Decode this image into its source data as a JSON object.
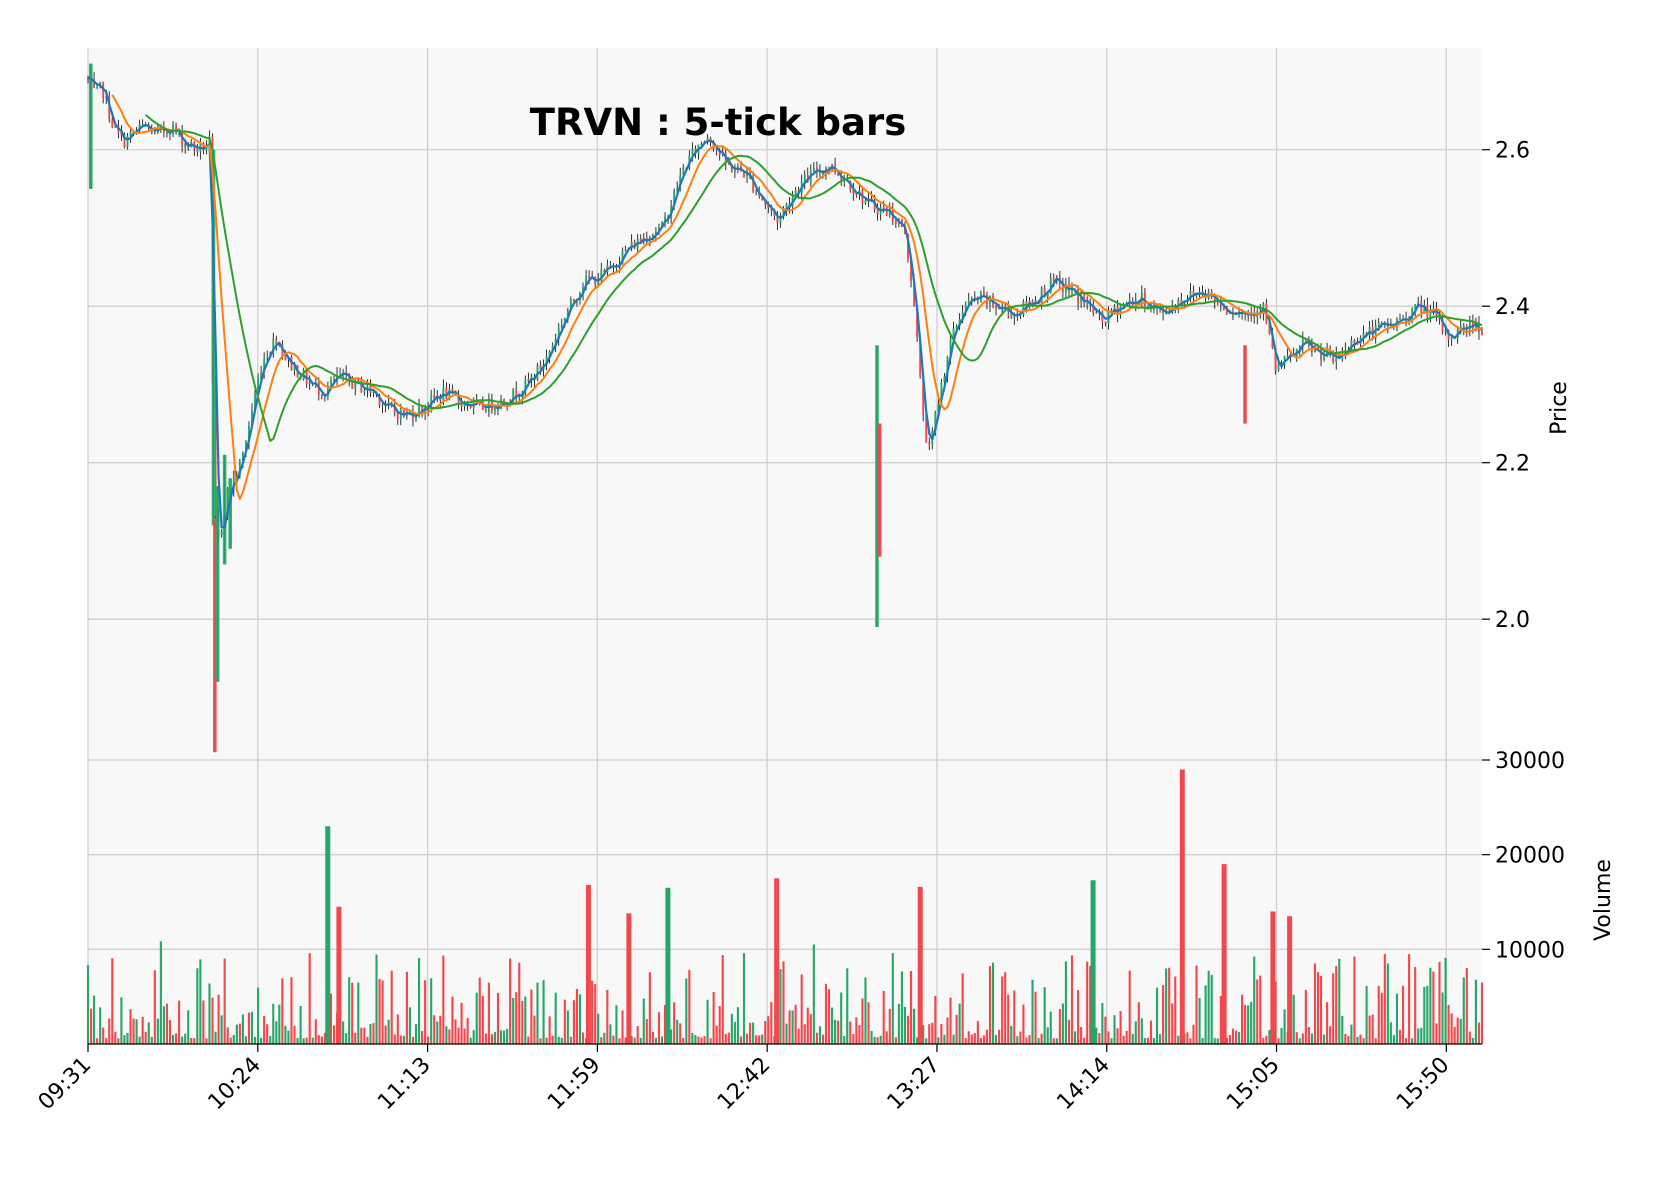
{
  "chart_data": {
    "type": "candlestick",
    "title": "TRVN : 5-tick bars",
    "price_axis": {
      "label": "Price",
      "ylim": [
        1.82,
        2.73
      ],
      "ticks": [
        2.0,
        2.2,
        2.4,
        2.6
      ],
      "tick_labels": [
        "2.0",
        "2.2",
        "2.4",
        "2.6"
      ],
      "side": "right"
    },
    "volume_axis": {
      "label": "Volume",
      "ylim": [
        0,
        30000
      ],
      "ticks": [
        10000,
        20000,
        30000
      ],
      "tick_labels": [
        "10000",
        "20000",
        "30000"
      ],
      "side": "right"
    },
    "time_axis": {
      "tick_labels": [
        "09:31",
        "10:24",
        "11:13",
        "11:59",
        "12:42",
        "13:27",
        "14:14",
        "15:05",
        "15:50"
      ],
      "tick_positions": [
        0,
        0.1218,
        0.2436,
        0.3654,
        0.4872,
        0.609,
        0.7308,
        0.8526,
        0.9744
      ]
    },
    "grid": true,
    "style": {
      "up_color": "#26a76a",
      "down_color": "#f0484c",
      "wick_color": "#000000",
      "panel_background": "#f8f8f8",
      "grid_color": "#d0d0d0",
      "ma_colors": [
        "#1f77b4",
        "#ff7f0e",
        "#2ca02c"
      ]
    },
    "price_anchors": [
      [
        0.0,
        2.69
      ],
      [
        0.005,
        2.67
      ],
      [
        0.01,
        2.68
      ],
      [
        0.018,
        2.63
      ],
      [
        0.025,
        2.61
      ],
      [
        0.032,
        2.62
      ],
      [
        0.04,
        2.63
      ],
      [
        0.05,
        2.62
      ],
      [
        0.06,
        2.63
      ],
      [
        0.068,
        2.61
      ],
      [
        0.08,
        2.6
      ],
      [
        0.088,
        2.61
      ],
      [
        0.09,
        2.14
      ],
      [
        0.094,
        2.1
      ],
      [
        0.1,
        2.16
      ],
      [
        0.11,
        2.2
      ],
      [
        0.118,
        2.27
      ],
      [
        0.125,
        2.33
      ],
      [
        0.135,
        2.36
      ],
      [
        0.143,
        2.33
      ],
      [
        0.16,
        2.3
      ],
      [
        0.17,
        2.29
      ],
      [
        0.18,
        2.31
      ],
      [
        0.192,
        2.3
      ],
      [
        0.205,
        2.29
      ],
      [
        0.215,
        2.27
      ],
      [
        0.228,
        2.26
      ],
      [
        0.24,
        2.27
      ],
      [
        0.255,
        2.29
      ],
      [
        0.265,
        2.28
      ],
      [
        0.28,
        2.27
      ],
      [
        0.3,
        2.28
      ],
      [
        0.315,
        2.3
      ],
      [
        0.328,
        2.33
      ],
      [
        0.34,
        2.38
      ],
      [
        0.355,
        2.43
      ],
      [
        0.37,
        2.44
      ],
      [
        0.385,
        2.47
      ],
      [
        0.4,
        2.49
      ],
      [
        0.412,
        2.5
      ],
      [
        0.42,
        2.54
      ],
      [
        0.428,
        2.58
      ],
      [
        0.436,
        2.6
      ],
      [
        0.445,
        2.62
      ],
      [
        0.458,
        2.58
      ],
      [
        0.472,
        2.57
      ],
      [
        0.486,
        2.53
      ],
      [
        0.495,
        2.51
      ],
      [
        0.508,
        2.55
      ],
      [
        0.52,
        2.57
      ],
      [
        0.532,
        2.58
      ],
      [
        0.545,
        2.56
      ],
      [
        0.56,
        2.53
      ],
      [
        0.575,
        2.52
      ],
      [
        0.585,
        2.5
      ],
      [
        0.592,
        2.42
      ],
      [
        0.598,
        2.28
      ],
      [
        0.603,
        2.21
      ],
      [
        0.61,
        2.28
      ],
      [
        0.618,
        2.35
      ],
      [
        0.628,
        2.4
      ],
      [
        0.64,
        2.41
      ],
      [
        0.652,
        2.4
      ],
      [
        0.665,
        2.39
      ],
      [
        0.68,
        2.41
      ],
      [
        0.692,
        2.43
      ],
      [
        0.705,
        2.42
      ],
      [
        0.718,
        2.4
      ],
      [
        0.728,
        2.38
      ],
      [
        0.74,
        2.4
      ],
      [
        0.755,
        2.41
      ],
      [
        0.77,
        2.39
      ],
      [
        0.785,
        2.41
      ],
      [
        0.8,
        2.42
      ],
      [
        0.815,
        2.4
      ],
      [
        0.83,
        2.39
      ],
      [
        0.843,
        2.4
      ],
      [
        0.852,
        2.32
      ],
      [
        0.86,
        2.33
      ],
      [
        0.872,
        2.35
      ],
      [
        0.885,
        2.34
      ],
      [
        0.895,
        2.33
      ],
      [
        0.91,
        2.36
      ],
      [
        0.925,
        2.37
      ],
      [
        0.94,
        2.38
      ],
      [
        0.955,
        2.4
      ],
      [
        0.965,
        2.39
      ],
      [
        0.975,
        2.36
      ],
      [
        0.985,
        2.37
      ],
      [
        0.995,
        2.38
      ],
      [
        1.0,
        2.37
      ]
    ],
    "spikes": [
      {
        "x": 0.09,
        "low": 2.12,
        "high": 2.6
      },
      {
        "x": 0.091,
        "low": 1.83,
        "high": 2.13
      },
      {
        "x": 0.093,
        "low": 1.92,
        "high": 2.17
      },
      {
        "x": 0.098,
        "low": 2.07,
        "high": 2.21
      },
      {
        "x": 0.102,
        "low": 2.09,
        "high": 2.18
      },
      {
        "x": 0.566,
        "low": 1.99,
        "high": 2.35
      },
      {
        "x": 0.568,
        "low": 2.08,
        "high": 2.25
      },
      {
        "x": 0.83,
        "low": 2.25,
        "high": 2.35
      },
      {
        "x": 0.002,
        "low": 2.55,
        "high": 2.71
      }
    ],
    "volume_peaks": [
      {
        "x": 0.172,
        "value": 23000,
        "up": true
      },
      {
        "x": 0.18,
        "value": 14500,
        "up": false
      },
      {
        "x": 0.359,
        "value": 16800,
        "up": false
      },
      {
        "x": 0.388,
        "value": 13800,
        "up": false
      },
      {
        "x": 0.416,
        "value": 16500,
        "up": true
      },
      {
        "x": 0.494,
        "value": 17500,
        "up": false
      },
      {
        "x": 0.597,
        "value": 16600,
        "up": false
      },
      {
        "x": 0.721,
        "value": 17300,
        "up": true
      },
      {
        "x": 0.785,
        "value": 29000,
        "up": false
      },
      {
        "x": 0.815,
        "value": 19000,
        "up": false
      },
      {
        "x": 0.85,
        "value": 14000,
        "up": false
      },
      {
        "x": 0.862,
        "value": 13500,
        "up": false
      }
    ]
  }
}
